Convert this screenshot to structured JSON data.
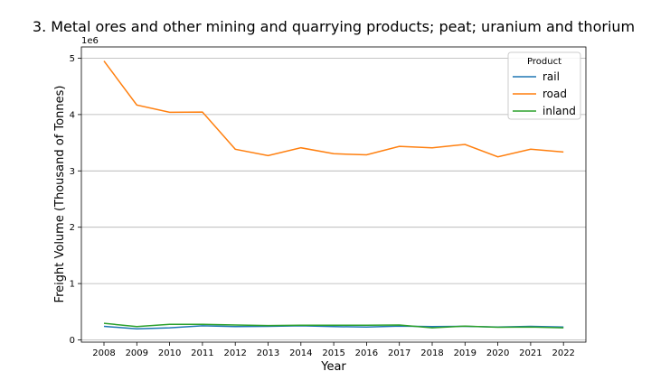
{
  "chart_data": {
    "type": "line",
    "title": "3. Metal ores and other mining and quarrying products; peat; uranium and thorium",
    "xlabel": "Year",
    "ylabel": "Freight Volume (Thousand of Tonnes)",
    "offset_text": "1e6",
    "categories": [
      "2008",
      "2009",
      "2010",
      "2011",
      "2012",
      "2013",
      "2014",
      "2015",
      "2016",
      "2017",
      "2018",
      "2019",
      "2020",
      "2021",
      "2022"
    ],
    "yticks": [
      "0",
      "1",
      "2",
      "3",
      "4",
      "5"
    ],
    "ylim": [
      -40000,
      5200000
    ],
    "grid": "horizontal",
    "legend": {
      "title": "Product",
      "position": "top-right"
    },
    "series": [
      {
        "name": "rail",
        "color": "#1f77b4",
        "values": [
          240000,
          195000,
          215000,
          250000,
          235000,
          240000,
          250000,
          235000,
          230000,
          245000,
          235000,
          240000,
          230000,
          240000,
          230000
        ]
      },
      {
        "name": "road",
        "color": "#ff7f0e",
        "values": [
          4950000,
          4170000,
          4040000,
          4045000,
          3385000,
          3270000,
          3410000,
          3305000,
          3285000,
          3435000,
          3410000,
          3470000,
          3250000,
          3385000,
          3335000
        ]
      },
      {
        "name": "inland",
        "color": "#2ca02c",
        "values": [
          295000,
          235000,
          275000,
          275000,
          265000,
          255000,
          260000,
          260000,
          260000,
          265000,
          215000,
          245000,
          225000,
          230000,
          215000
        ]
      }
    ]
  }
}
